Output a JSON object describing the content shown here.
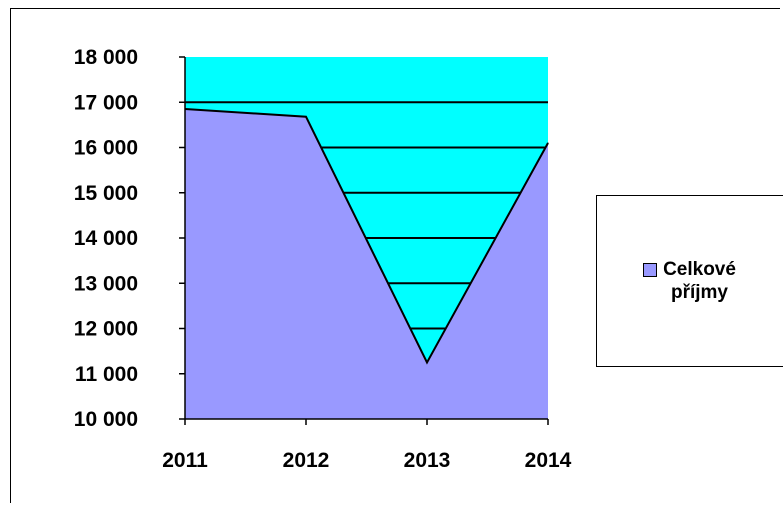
{
  "chart_data": {
    "type": "area",
    "categories": [
      "2011",
      "2012",
      "2013",
      "2014"
    ],
    "series": [
      {
        "name": "Celkové příjmy",
        "values": [
          16850,
          16680,
          11250,
          16100
        ],
        "color": "#9999ff"
      }
    ],
    "ylim": [
      10000,
      18000
    ],
    "yticks": [
      {
        "value": 18000,
        "label": "18 000"
      },
      {
        "value": 17000,
        "label": "17 000"
      },
      {
        "value": 16000,
        "label": "16 000"
      },
      {
        "value": 15000,
        "label": "15 000"
      },
      {
        "value": 14000,
        "label": "14 000"
      },
      {
        "value": 13000,
        "label": "13 000"
      },
      {
        "value": 12000,
        "label": "12 000"
      },
      {
        "value": 11000,
        "label": "11 000"
      },
      {
        "value": 10000,
        "label": "10 000"
      }
    ],
    "plot_background": "#00ffff",
    "grid": true,
    "legend": {
      "position": "right",
      "label": "Celkové příjmy"
    }
  }
}
